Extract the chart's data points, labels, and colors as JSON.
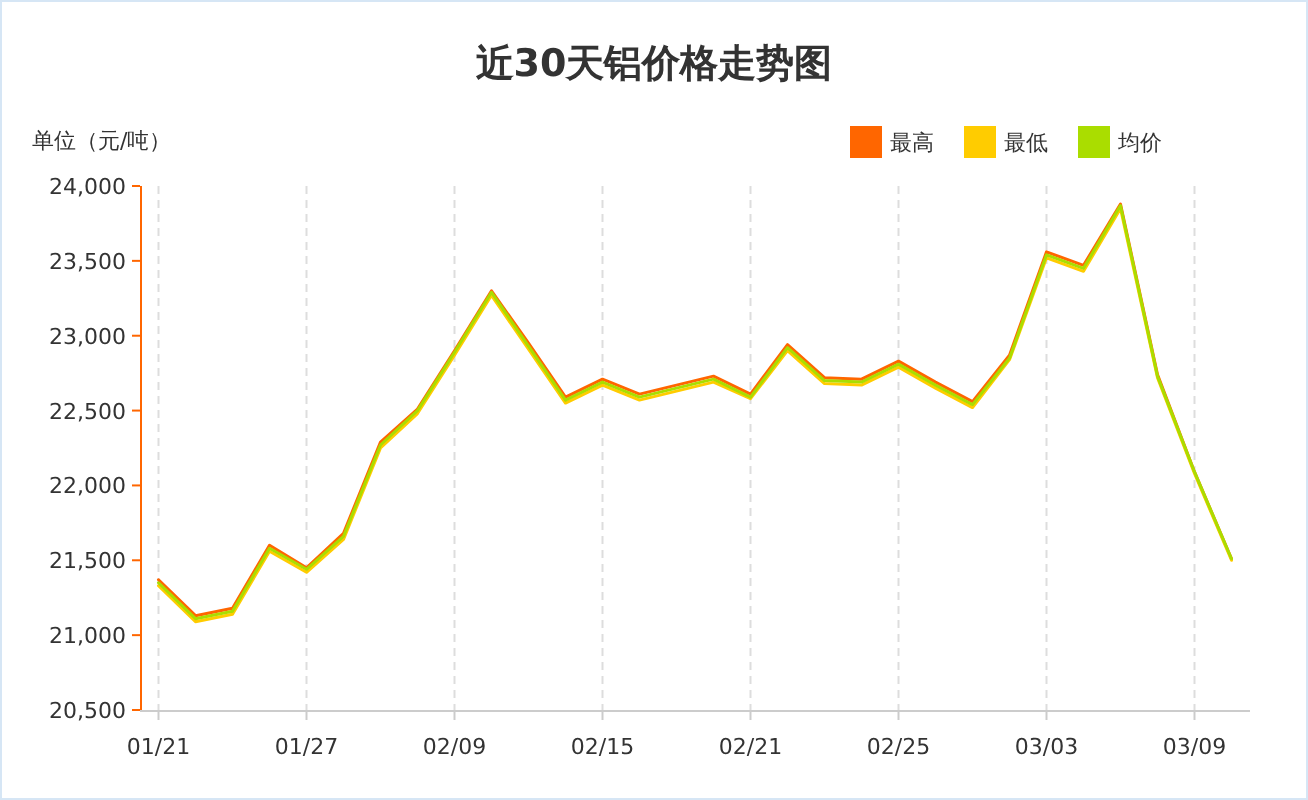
{
  "chart_data": {
    "type": "line",
    "title": "近30天铝价格走势图",
    "ylabel": "单位（元/吨）",
    "categories": [
      "01/21",
      null,
      null,
      null,
      "01/27",
      null,
      null,
      null,
      "02/09",
      null,
      null,
      null,
      "02/15",
      null,
      null,
      null,
      "02/21",
      null,
      null,
      null,
      "02/25",
      null,
      null,
      null,
      "03/03",
      null,
      null,
      null,
      "03/09",
      null
    ],
    "series": [
      {
        "name": "最高",
        "color": "#ff6600",
        "values": [
          21370,
          21130,
          21180,
          21600,
          21450,
          21680,
          22290,
          22510,
          22900,
          23300,
          22950,
          22590,
          22710,
          22610,
          22670,
          22730,
          22610,
          22940,
          22720,
          22710,
          22830,
          22690,
          22560,
          22870,
          23560,
          23470,
          23880,
          22740,
          22090,
          21510
        ]
      },
      {
        "name": "最低",
        "color": "#ffcc00",
        "values": [
          21330,
          21090,
          21140,
          21560,
          21420,
          21640,
          22250,
          22480,
          22870,
          23270,
          22910,
          22550,
          22670,
          22570,
          22630,
          22690,
          22580,
          22900,
          22680,
          22670,
          22790,
          22650,
          22520,
          22840,
          23520,
          23430,
          23850,
          22720,
          22080,
          21500
        ]
      },
      {
        "name": "均价",
        "color": "#aadd00",
        "values": [
          21350,
          21110,
          21160,
          21580,
          21440,
          21660,
          22270,
          22500,
          22890,
          23290,
          22930,
          22570,
          22690,
          22590,
          22650,
          22710,
          22590,
          22920,
          22700,
          22690,
          22810,
          22670,
          22540,
          22850,
          23540,
          23450,
          23870,
          22730,
          22090,
          21510
        ]
      }
    ],
    "ylim": [
      20500,
      24000
    ],
    "yticks": [
      {
        "value": 20500,
        "label": "20,500"
      },
      {
        "value": 21000,
        "label": "21,000"
      },
      {
        "value": 21500,
        "label": "21,500"
      },
      {
        "value": 22000,
        "label": "22,000"
      },
      {
        "value": 22500,
        "label": "22,500"
      },
      {
        "value": 23000,
        "label": "23,000"
      },
      {
        "value": 23500,
        "label": "23,500"
      },
      {
        "value": 24000,
        "label": "24,000"
      }
    ],
    "grid": "x",
    "legend": "top right",
    "marker": "none",
    "line_style": "solid"
  }
}
